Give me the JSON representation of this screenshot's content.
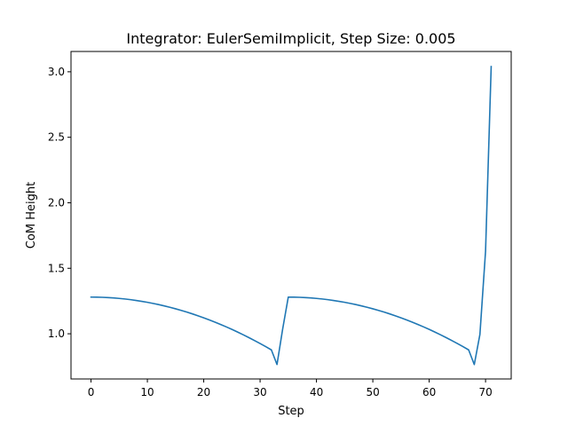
{
  "chart_data": {
    "type": "line",
    "title": "Integrator: EulerSemiImplicit, Step Size: 0.005",
    "xlabel": "Step",
    "ylabel": "CoM Height",
    "xlim": [
      -3.55,
      74.55
    ],
    "ylim": [
      0.655,
      3.155
    ],
    "xticks": [
      0,
      10,
      20,
      30,
      40,
      50,
      60,
      70
    ],
    "xtick_labels": [
      "0",
      "10",
      "20",
      "30",
      "40",
      "50",
      "60",
      "70"
    ],
    "yticks": [
      1.0,
      1.5,
      2.0,
      2.5,
      3.0
    ],
    "ytick_labels": [
      "1.0",
      "1.5",
      "2.0",
      "2.5",
      "3.0"
    ],
    "grid": false,
    "series": [
      {
        "color": "#1f77b4",
        "x": [
          0,
          1,
          2,
          3,
          4,
          5,
          6,
          7,
          8,
          9,
          10,
          11,
          12,
          13,
          14,
          15,
          16,
          17,
          18,
          19,
          20,
          21,
          22,
          23,
          24,
          25,
          26,
          27,
          28,
          29,
          30,
          31,
          32,
          33,
          34,
          35,
          36,
          37,
          38,
          39,
          40,
          41,
          42,
          43,
          44,
          45,
          46,
          47,
          48,
          49,
          50,
          51,
          52,
          53,
          54,
          55,
          56,
          57,
          58,
          59,
          60,
          61,
          62,
          63,
          64,
          65,
          66,
          67,
          68,
          69,
          70,
          71
        ],
        "y": [
          1.28,
          1.2796,
          1.2784,
          1.2764,
          1.2735,
          1.2699,
          1.2655,
          1.2604,
          1.2544,
          1.2476,
          1.2401,
          1.2318,
          1.2227,
          1.2128,
          1.2021,
          1.1907,
          1.1784,
          1.1654,
          1.1517,
          1.1371,
          1.1217,
          1.1056,
          1.0887,
          1.071,
          1.0526,
          1.0334,
          1.0133,
          0.9926,
          0.971,
          0.9486,
          0.9255,
          0.9016,
          0.8769,
          0.7655,
          1.035,
          1.28,
          1.2796,
          1.2784,
          1.2764,
          1.2735,
          1.2699,
          1.2655,
          1.2604,
          1.2544,
          1.2476,
          1.2401,
          1.2318,
          1.2227,
          1.2128,
          1.2021,
          1.1907,
          1.1784,
          1.1654,
          1.1517,
          1.1371,
          1.1217,
          1.1056,
          1.0887,
          1.071,
          1.0526,
          1.0334,
          1.0133,
          0.9926,
          0.971,
          0.9486,
          0.9255,
          0.9016,
          0.8769,
          0.765,
          0.995,
          1.63,
          3.04
        ]
      }
    ]
  }
}
